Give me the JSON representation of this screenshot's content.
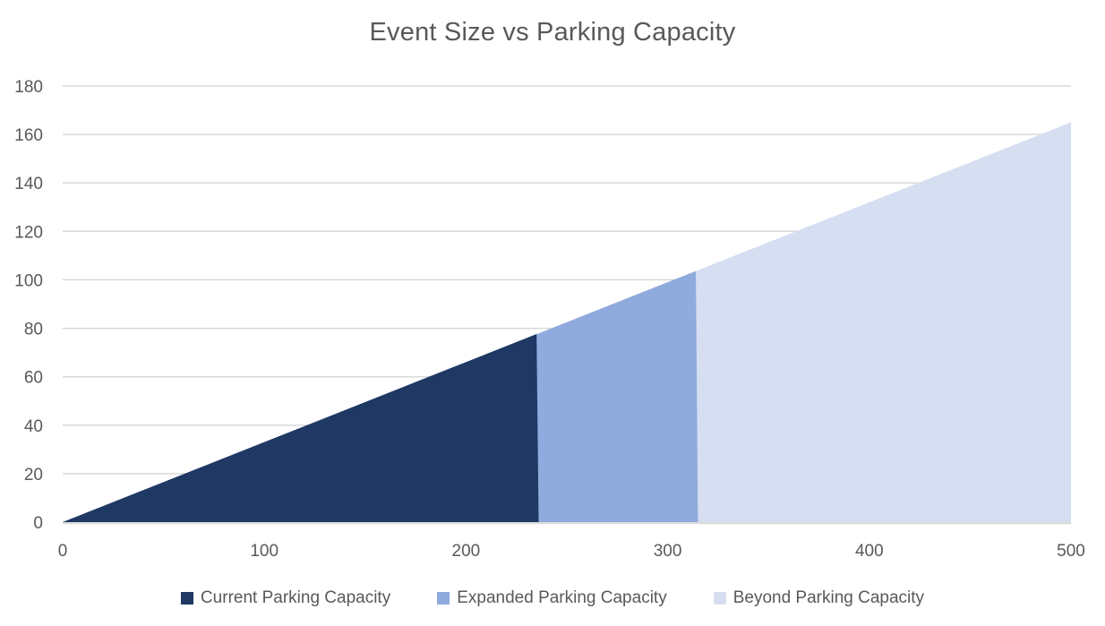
{
  "chart_data": {
    "type": "area",
    "title": "Event Size vs Parking Capacity",
    "xlabel": "",
    "ylabel": "",
    "xlim": [
      0,
      500
    ],
    "ylim": [
      0,
      180
    ],
    "x_ticks": [
      0,
      100,
      200,
      300,
      400,
      500
    ],
    "y_ticks": [
      0,
      20,
      40,
      60,
      80,
      100,
      120,
      140,
      160,
      180
    ],
    "grid": "horizontal",
    "legend_position": "bottom-center",
    "description": "Single straight demand line from (0,0) to (500,165), about 0.33 parking spots per event attendee, shaded in three capacity bands",
    "series": [
      {
        "name": "Current Parking Capacity",
        "color": "#1F3864",
        "x_range": [
          0,
          235
        ],
        "peak_value": 77.6,
        "points": [
          [
            0,
            0
          ],
          [
            235,
            77.6
          ],
          [
            236,
            0
          ]
        ]
      },
      {
        "name": "Expanded Parking Capacity",
        "color": "#8FAADC",
        "x_range": [
          235,
          315
        ],
        "peak_value": 103.6,
        "points": [
          [
            0,
            0
          ],
          [
            314,
            103.6
          ],
          [
            315,
            0
          ]
        ]
      },
      {
        "name": "Beyond Parking Capacity",
        "color": "#D5DFF1",
        "x_range": [
          315,
          500
        ],
        "peak_value": 165,
        "points": [
          [
            0,
            0
          ],
          [
            500,
            165
          ],
          [
            500,
            0
          ]
        ]
      }
    ],
    "colors": {
      "grid": "#D9D9D9",
      "axis": "#D9D9D9",
      "text": "#595959"
    }
  }
}
